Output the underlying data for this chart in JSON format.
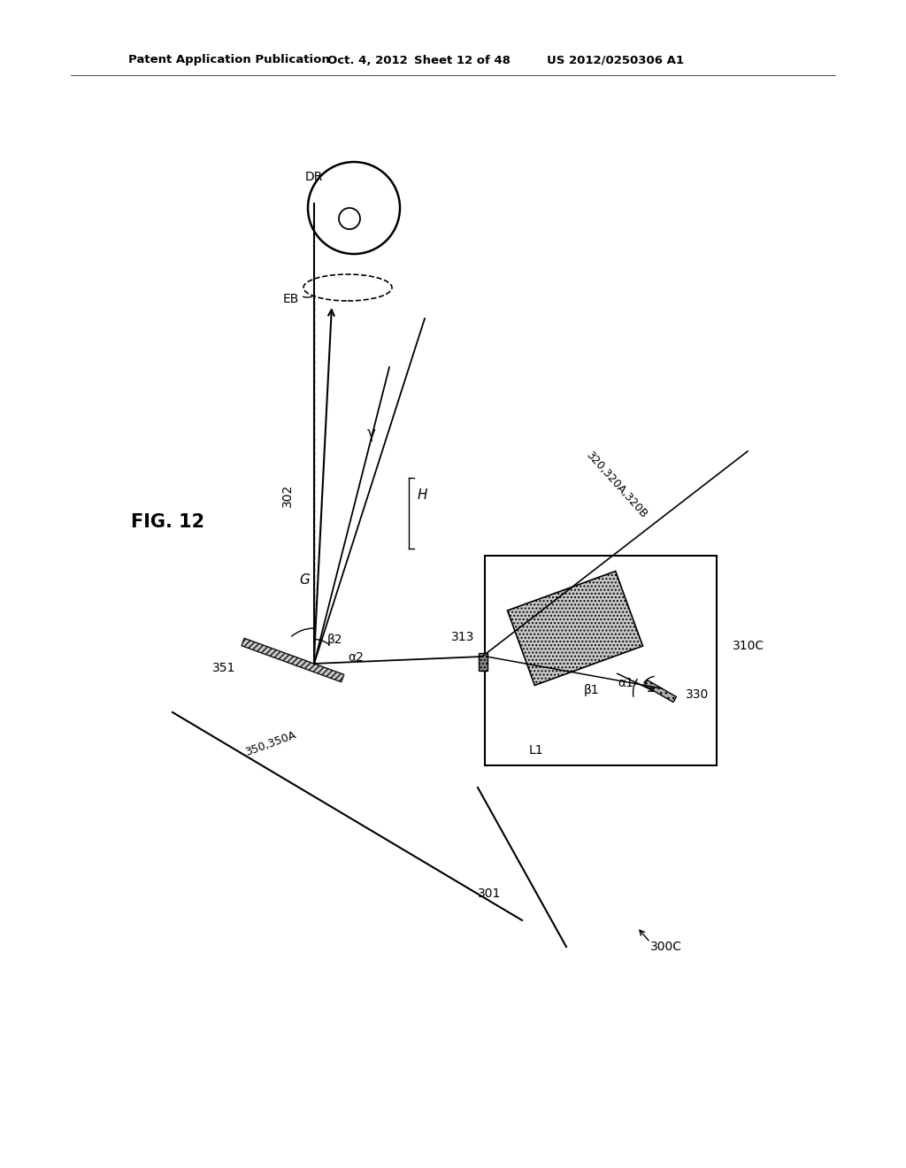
{
  "bg_color": "#ffffff",
  "header_left": "Patent Application Publication",
  "header_mid": "Oct. 4, 2012",
  "header_mid2": "Sheet 12 of 48",
  "header_right": "US 2012/0250306 A1",
  "fig_label": "FIG. 12",
  "labels": {
    "DR": "DR",
    "EB": "EB",
    "G": "G",
    "H": "H",
    "gamma": "γ",
    "beta2": "β2",
    "alpha2": "α2",
    "beta1": "β1",
    "alpha1": "α1",
    "L1": "L1",
    "300C": "300C",
    "301": "301",
    "302": "302",
    "310C": "310C",
    "313": "313",
    "320": "320,320A,320B",
    "330": "330",
    "350": "350,350A",
    "351": "351"
  }
}
